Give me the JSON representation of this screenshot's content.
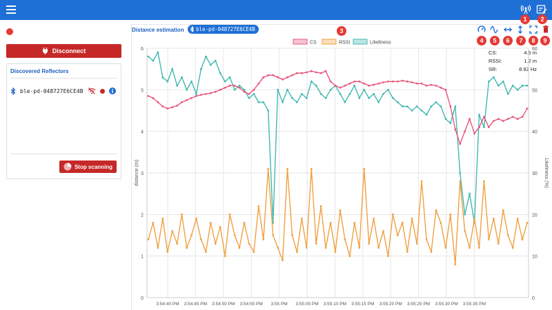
{
  "app": {
    "colors": {
      "topbar": "#1e6fd6",
      "danger": "#c62828",
      "accent": "#1e5fbf"
    }
  },
  "topbar": {
    "menu_icon": "hamburger-icon",
    "icons": [
      "antenna-icon",
      "edit-note-icon"
    ]
  },
  "sidebar": {
    "disconnect_label": "Disconnect",
    "reflectors_title": "Discovered Reflectors",
    "reflectors": [
      {
        "name": "ble-pd-048727E6CE4B"
      }
    ],
    "stop_label": "Stop scanning"
  },
  "main": {
    "title": "Distance estimation",
    "separator": "-",
    "device_chip": "ble-pd-048727E6CE4B",
    "stats": [
      {
        "label": "CS:",
        "value": "4.6 m"
      },
      {
        "label": "RSSI:",
        "value": "1.2 m"
      },
      {
        "label": "SR:",
        "value": "8.92 Hz"
      }
    ],
    "annotations": [
      "1",
      "2",
      "3",
      "4",
      "5",
      "6",
      "7",
      "8",
      "9"
    ]
  },
  "chart_data": {
    "type": "line",
    "xlabel": "",
    "ylabel": "distance (m)",
    "y2label": "Likeliness (%)",
    "ylim": [
      0,
      6
    ],
    "y2lim": [
      0,
      60
    ],
    "yticks": [
      0,
      1,
      2,
      3,
      4,
      5,
      6
    ],
    "y2ticks": [
      0,
      10,
      20,
      30,
      40,
      50,
      60
    ],
    "xtick_labels": [
      "3:54:40 PM",
      "3:54:45 PM",
      "3:54:50 PM",
      "3:54:55 PM",
      "3:55 PM",
      "3:55:05 PM",
      "3:55:10 PM",
      "3:55:15 PM",
      "3:55:20 PM",
      "3:55:25 PM",
      "3:55:30 PM",
      "3:55:35 PM"
    ],
    "grid": true,
    "legend_position": "top",
    "series": [
      {
        "name": "CS",
        "axis": "left",
        "color": "#e8557a",
        "values": [
          4.85,
          4.8,
          4.7,
          4.6,
          4.55,
          4.58,
          4.62,
          4.7,
          4.75,
          4.8,
          4.85,
          4.88,
          4.9,
          4.92,
          4.95,
          5.0,
          5.05,
          5.1,
          5.1,
          5.05,
          4.95,
          4.9,
          5.0,
          5.15,
          5.3,
          5.35,
          5.35,
          5.3,
          5.25,
          5.3,
          5.35,
          5.4,
          5.4,
          5.42,
          5.45,
          5.42,
          5.4,
          5.45,
          5.2,
          5.1,
          5.05,
          5.1,
          5.15,
          5.2,
          5.2,
          5.15,
          5.1,
          5.12,
          5.15,
          5.18,
          5.2,
          5.2,
          5.2,
          5.22,
          5.2,
          5.18,
          5.15,
          5.15,
          5.1,
          5.12,
          5.1,
          5.05,
          5.0,
          4.6,
          4.05,
          3.7,
          4.0,
          4.3,
          3.95,
          4.1,
          4.35,
          4.1,
          4.25,
          4.3,
          4.25,
          4.3,
          4.35,
          4.3,
          4.35,
          4.55
        ]
      },
      {
        "name": "RSSI",
        "axis": "left",
        "color": "#f0a040",
        "values": [
          1.4,
          1.8,
          1.2,
          1.9,
          1.1,
          1.6,
          1.3,
          2.0,
          1.2,
          1.5,
          1.9,
          1.4,
          1.1,
          1.8,
          1.3,
          1.7,
          1.0,
          2.0,
          1.5,
          1.2,
          1.8,
          1.3,
          1.1,
          2.2,
          1.4,
          3.1,
          1.5,
          1.2,
          0.9,
          3.1,
          1.5,
          1.1,
          1.9,
          1.2,
          3.1,
          1.3,
          2.2,
          1.2,
          1.8,
          1.1,
          2.1,
          1.4,
          1.0,
          1.8,
          1.2,
          3.1,
          1.3,
          1.9,
          1.2,
          1.6,
          1.0,
          2.0,
          1.5,
          1.8,
          1.1,
          1.9,
          1.3,
          2.8,
          1.4,
          1.1,
          2.1,
          1.8,
          1.2,
          2.0,
          0.8,
          2.8,
          1.6,
          1.2,
          1.9,
          1.2,
          2.8,
          1.4,
          1.9,
          1.3,
          2.1,
          1.5,
          1.2,
          1.9,
          1.4,
          1.8
        ]
      },
      {
        "name": "Likeliness",
        "axis": "right",
        "color": "#40b8b0",
        "values": [
          58,
          57,
          59,
          53,
          52,
          55,
          51,
          53,
          50,
          52,
          49,
          55,
          58,
          56,
          57,
          54,
          52,
          53,
          50,
          51,
          50,
          48,
          49,
          47,
          47,
          45,
          18,
          50,
          47,
          50,
          48,
          47,
          49,
          48,
          52,
          51,
          49,
          48,
          50,
          51,
          49,
          47,
          49,
          51,
          48,
          50,
          48,
          49,
          47,
          49,
          50,
          48,
          47,
          46,
          46,
          45,
          46,
          45,
          44,
          46,
          47,
          46,
          43,
          42,
          46,
          30,
          20,
          25,
          18,
          44,
          41,
          52,
          53,
          51,
          52,
          49,
          51,
          50,
          51,
          51
        ]
      }
    ]
  }
}
